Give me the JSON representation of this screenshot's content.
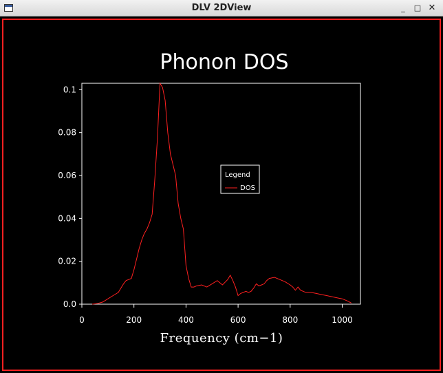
{
  "window": {
    "title": "DLV 2DView",
    "minimize_label": "_",
    "maximize_label": "□",
    "close_label": "✕",
    "border_color": "#ff2020",
    "background": "#000000"
  },
  "chart_data": {
    "type": "line",
    "title": "Phonon DOS",
    "xlabel": "Frequency (cm−1)",
    "ylabel": "",
    "xlim": [
      0,
      1070
    ],
    "ylim": [
      0,
      0.103
    ],
    "xticks": [
      0,
      200,
      400,
      600,
      800,
      1000
    ],
    "yticks": [
      0.0,
      0.02,
      0.04,
      0.06,
      0.08,
      0.1
    ],
    "xtick_labels": [
      "0",
      "200",
      "400",
      "600",
      "800",
      "1000"
    ],
    "ytick_labels": [
      "0.0",
      "0.02",
      "0.04",
      "0.06",
      "0.08",
      "0.1"
    ],
    "grid": false,
    "background": "#000000",
    "axes_color": "#ffffff",
    "legend": {
      "title": "Legend",
      "placement": "upper-center-right",
      "entries": [
        "DOS"
      ]
    },
    "series": [
      {
        "name": "DOS",
        "color": "#ff2020",
        "x": [
          40,
          60,
          80,
          100,
          120,
          140,
          150,
          160,
          170,
          180,
          190,
          200,
          210,
          220,
          230,
          240,
          250,
          260,
          270,
          280,
          290,
          300,
          310,
          320,
          330,
          340,
          350,
          360,
          370,
          380,
          390,
          400,
          410,
          420,
          430,
          440,
          460,
          480,
          500,
          520,
          540,
          560,
          570,
          580,
          590,
          600,
          610,
          620,
          630,
          640,
          650,
          660,
          670,
          680,
          690,
          700,
          710,
          720,
          740,
          760,
          780,
          800,
          810,
          820,
          830,
          840,
          860,
          880,
          900,
          920,
          940,
          960,
          980,
          1000,
          1020,
          1035
        ],
        "y": [
          0.0,
          0.0003,
          0.001,
          0.0025,
          0.004,
          0.0055,
          0.0075,
          0.0095,
          0.011,
          0.0115,
          0.012,
          0.016,
          0.021,
          0.026,
          0.03,
          0.033,
          0.035,
          0.038,
          0.042,
          0.058,
          0.077,
          0.103,
          0.101,
          0.095,
          0.08,
          0.07,
          0.065,
          0.06,
          0.047,
          0.04,
          0.035,
          0.018,
          0.012,
          0.008,
          0.008,
          0.0085,
          0.009,
          0.008,
          0.0095,
          0.011,
          0.009,
          0.0115,
          0.0135,
          0.011,
          0.008,
          0.004,
          0.005,
          0.0055,
          0.006,
          0.0055,
          0.006,
          0.0075,
          0.0095,
          0.0085,
          0.009,
          0.0095,
          0.011,
          0.012,
          0.0125,
          0.0115,
          0.0105,
          0.009,
          0.008,
          0.0065,
          0.008,
          0.0065,
          0.0055,
          0.0055,
          0.005,
          0.0045,
          0.004,
          0.0035,
          0.003,
          0.0025,
          0.0015,
          0.0005
        ]
      }
    ]
  }
}
